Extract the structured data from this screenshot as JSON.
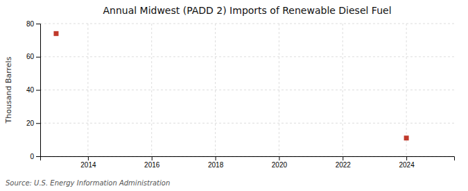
{
  "chart_data": {
    "type": "scatter",
    "title": "Annual Midwest (PADD 2) Imports of Renewable Diesel Fuel",
    "ylabel": "Thousand Barrels",
    "source": "Source: U.S. Energy Information Administration",
    "x": [
      2013,
      2024
    ],
    "values": [
      74,
      11
    ],
    "color": "#c0392b",
    "marker": "square",
    "xlim": [
      2012.5,
      2025.5
    ],
    "ylim": [
      0,
      80
    ],
    "xticks": [
      2014,
      2016,
      2018,
      2020,
      2022,
      2024
    ],
    "yticks": [
      0,
      20,
      40,
      60,
      80
    ],
    "grid": true
  }
}
